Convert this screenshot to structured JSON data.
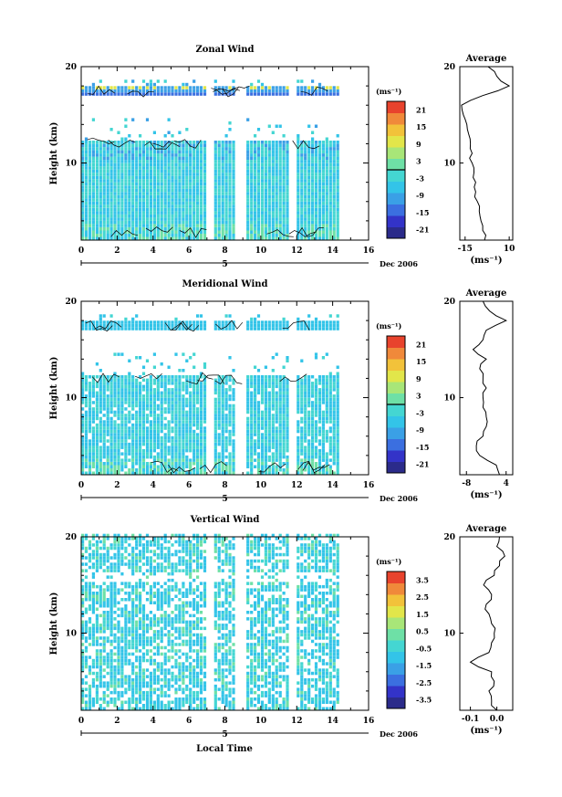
{
  "colors": {
    "colormap": [
      "#2b2b8a",
      "#3333c8",
      "#3b6fe0",
      "#3aa0e6",
      "#33c4e8",
      "#44d6d2",
      "#6ee0a6",
      "#a8e678",
      "#e2e64a",
      "#f2c23a",
      "#f0893a",
      "#e8432d"
    ],
    "contour": "#000000",
    "axis": "#000000"
  },
  "x_axis": {
    "ticks": [
      "0",
      "2",
      "4",
      "6",
      "8",
      "10",
      "12",
      "14",
      "16"
    ],
    "date_label": "Dec 2006",
    "day_label": "5",
    "xlabel": "Local Time"
  },
  "chart_data": [
    {
      "type": "heatmap",
      "title": "Zonal Wind",
      "ylabel": "Height (km)",
      "x_range": [
        0,
        16
      ],
      "y_range": [
        2,
        20
      ],
      "y_ticks": [
        "10",
        "20"
      ],
      "data_x_extent": [
        0,
        14.2
      ],
      "data_gaps": [
        [
          7.0,
          7.4
        ],
        [
          8.6,
          9.1
        ],
        [
          11.5,
          11.8
        ]
      ],
      "colorbar": {
        "unit": "(ms⁻¹)",
        "range": [
          -24,
          24
        ],
        "ticks": [
          "21",
          "15",
          "9",
          "3",
          "-3",
          "-9",
          "-15",
          "-21"
        ]
      },
      "profile": {
        "title": "Average",
        "xlabel": "(ms⁻¹)",
        "x_ticks": [
          "-15",
          "10"
        ],
        "y_ticks": [
          "20",
          "10"
        ],
        "x_range": [
          -18,
          12
        ],
        "heights": [
          2,
          3,
          4,
          5,
          6,
          7,
          8,
          9,
          10,
          11,
          12,
          13,
          14,
          15,
          16,
          17,
          18,
          19,
          20
        ],
        "values": [
          -4,
          -5,
          -6,
          -7,
          -8,
          -9,
          -9,
          -10,
          -11,
          -11,
          -12,
          -13,
          -14,
          -16,
          -17,
          -5,
          10,
          3,
          -2
        ]
      }
    },
    {
      "type": "heatmap",
      "title": "Meridional Wind",
      "ylabel": "Height (km)",
      "x_range": [
        0,
        16
      ],
      "y_range": [
        2,
        20
      ],
      "y_ticks": [
        "10",
        "20"
      ],
      "data_x_extent": [
        0,
        14.2
      ],
      "data_gaps": [
        [
          7.0,
          7.4
        ],
        [
          8.6,
          9.1
        ],
        [
          11.5,
          11.8
        ]
      ],
      "colorbar": {
        "unit": "(ms⁻¹)",
        "range": [
          -24,
          24
        ],
        "ticks": [
          "21",
          "15",
          "9",
          "3",
          "-3",
          "-9",
          "-15",
          "-21"
        ]
      },
      "profile": {
        "title": "Average",
        "xlabel": "(ms⁻¹)",
        "x_ticks": [
          "-8",
          "4"
        ],
        "y_ticks": [
          "20",
          "10"
        ],
        "x_range": [
          -10,
          6
        ],
        "heights": [
          2,
          3,
          4,
          5,
          6,
          7,
          8,
          9,
          10,
          11,
          12,
          13,
          14,
          15,
          16,
          17,
          18,
          19,
          20
        ],
        "values": [
          2,
          1,
          -4,
          -5,
          -3,
          -2,
          -2,
          -3,
          -3,
          -2,
          -3,
          -4,
          -2,
          -6,
          -3,
          -2,
          4,
          -1,
          -3
        ]
      }
    },
    {
      "type": "heatmap",
      "title": "Vertical Wind",
      "ylabel": "Height (km)",
      "x_range": [
        0,
        16
      ],
      "y_range": [
        2,
        20
      ],
      "y_ticks": [
        "10",
        "20"
      ],
      "data_x_extent": [
        0,
        14.2
      ],
      "data_gaps": [
        [
          7.0,
          7.4
        ],
        [
          8.6,
          9.1
        ],
        [
          11.5,
          11.8
        ]
      ],
      "colorbar": {
        "unit": "(ms⁻¹)",
        "range": [
          -4,
          4
        ],
        "ticks": [
          "3.5",
          "2.5",
          "1.5",
          "0.5",
          "-0.5",
          "-1.5",
          "-2.5",
          "-3.5"
        ]
      },
      "profile": {
        "title": "Average",
        "xlabel": "(ms⁻¹)",
        "x_ticks": [
          "-0.1",
          "0.0"
        ],
        "y_ticks": [
          "20",
          "10"
        ],
        "x_range": [
          -0.14,
          0.06
        ],
        "heights": [
          2,
          3,
          4,
          5,
          6,
          7,
          8,
          9,
          10,
          11,
          12,
          13,
          14,
          15,
          16,
          17,
          18,
          19,
          20
        ],
        "values": [
          0.0,
          -0.02,
          -0.03,
          -0.01,
          -0.02,
          -0.1,
          -0.03,
          -0.02,
          -0.01,
          -0.02,
          -0.03,
          -0.04,
          -0.02,
          -0.05,
          -0.01,
          0.01,
          0.03,
          0.0,
          0.01
        ]
      }
    }
  ]
}
